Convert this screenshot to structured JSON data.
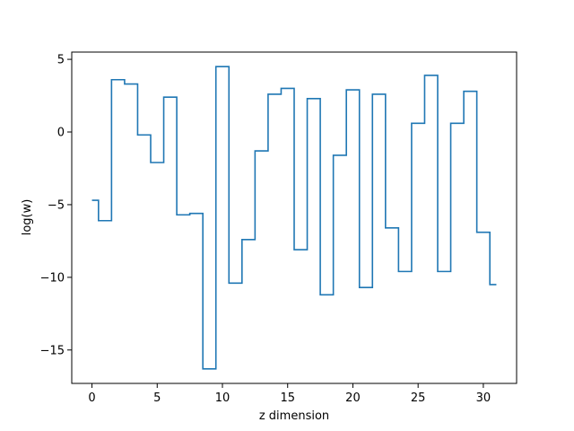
{
  "chart_data": {
    "type": "line",
    "drawstyle": "steps-mid",
    "title": "",
    "xlabel": "z dimension",
    "ylabel": "log(w)",
    "xlim": [
      -1.55,
      32.55
    ],
    "ylim": [
      -17.3,
      5.5
    ],
    "xticks": [
      0,
      5,
      10,
      15,
      20,
      25,
      30
    ],
    "xtick_labels": [
      "0",
      "5",
      "10",
      "15",
      "20",
      "25",
      "30"
    ],
    "yticks": [
      5,
      0,
      -5,
      -10,
      -15
    ],
    "ytick_labels": [
      "5",
      "0",
      "−5",
      "−10",
      "−15"
    ],
    "grid": false,
    "legend": "none",
    "series": [
      {
        "color": "#1f77b4",
        "x": [
          0,
          1,
          2,
          3,
          4,
          5,
          6,
          7,
          8,
          9,
          10,
          11,
          12,
          13,
          14,
          15,
          16,
          17,
          18,
          19,
          20,
          21,
          22,
          23,
          24,
          25,
          26,
          27,
          28,
          29,
          30,
          31
        ],
        "y": [
          -4.7,
          -6.1,
          3.6,
          3.3,
          -0.2,
          -2.1,
          2.4,
          -5.7,
          -5.6,
          -16.3,
          4.5,
          -10.4,
          -7.4,
          -1.3,
          2.6,
          3.0,
          -8.1,
          2.3,
          -11.2,
          -1.6,
          2.9,
          -10.7,
          2.6,
          -6.6,
          -9.6,
          0.6,
          3.9,
          -9.6,
          0.6,
          2.8,
          -6.9,
          -10.5
        ]
      }
    ]
  }
}
